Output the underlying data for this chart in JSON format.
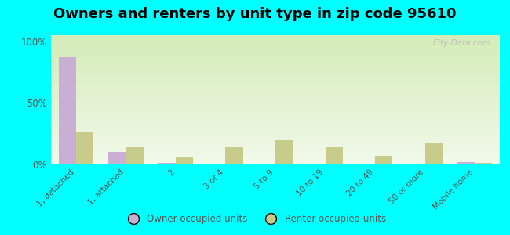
{
  "title": "Owners and renters by unit type in zip code 95610",
  "categories": [
    "1, detached",
    "1, attached",
    "2",
    "3 or 4",
    "5 to 9",
    "10 to 19",
    "20 to 49",
    "50 or more",
    "Mobile home"
  ],
  "owner_values": [
    87,
    10,
    1,
    0,
    0,
    0,
    0,
    0,
    2
  ],
  "renter_values": [
    27,
    14,
    6,
    14,
    20,
    14,
    7,
    18,
    1
  ],
  "owner_color": "#c9afd4",
  "renter_color": "#c8cc8a",
  "outer_bg": "#00ffff",
  "yticks": [
    0,
    50,
    100
  ],
  "ytick_labels": [
    "0%",
    "50%",
    "100%"
  ],
  "legend_owner": "Owner occupied units",
  "legend_renter": "Renter occupied units",
  "title_fontsize": 13,
  "bar_width": 0.35,
  "watermark": "City-Data.com"
}
